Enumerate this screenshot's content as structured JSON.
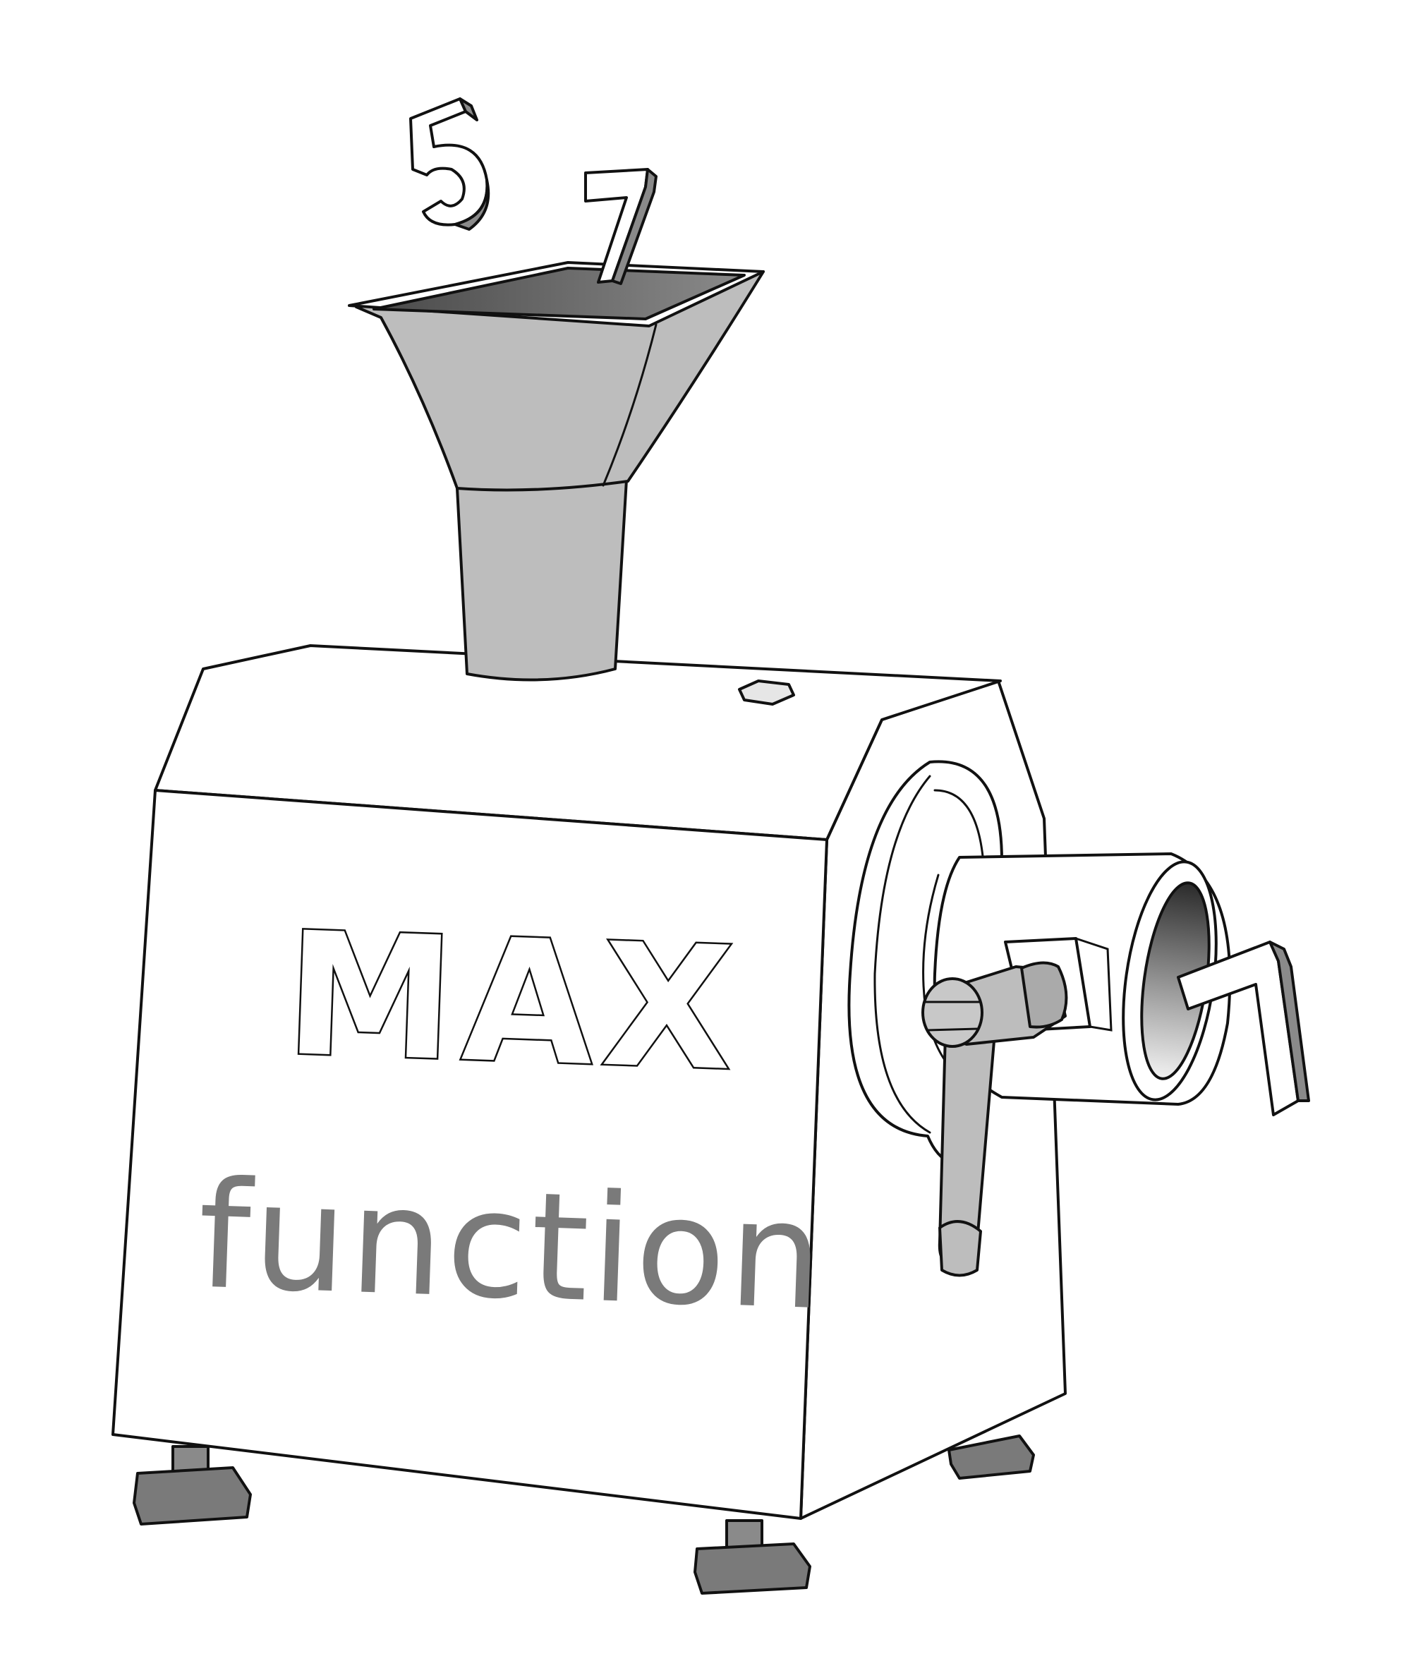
{
  "machine": {
    "title": "MAX",
    "subtitle": "function"
  },
  "inputs": [
    "5",
    "7"
  ],
  "output": "7",
  "colors": {
    "ink": "#111111",
    "metal": "#bdbdbd",
    "metal_dark": "#6e6e6e",
    "handwriting": "#7a7a7a",
    "paper": "#ffffff"
  }
}
